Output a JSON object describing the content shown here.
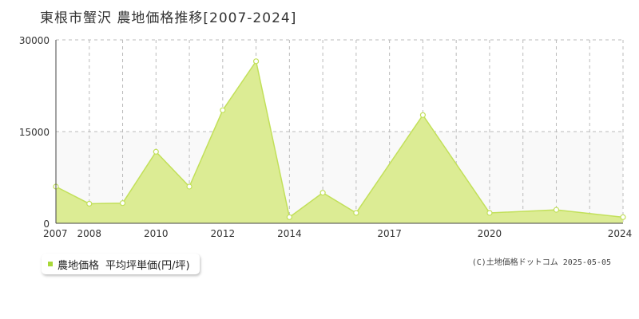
{
  "title": "東根市蟹沢  農地価格推移[2007-2024]",
  "legend": {
    "series_label": "農地価格",
    "unit_label": "平均坪単価(円/坪)"
  },
  "credit": "(C)土地価格ドットコム 2025-05-05",
  "colors": {
    "fill": "#dcec94",
    "line": "#c2e05a",
    "marker": "#a8d838",
    "grid": "#bbbbbb",
    "band": "#f9f9f9"
  },
  "chart_data": {
    "type": "area",
    "x": [
      2007,
      2008,
      2009,
      2010,
      2011,
      2012,
      2013,
      2014,
      2015,
      2016,
      2017,
      2018,
      2019,
      2020,
      2021,
      2022,
      2023,
      2024
    ],
    "y": [
      6000,
      3200,
      3300,
      11700,
      6000,
      18500,
      26500,
      1000,
      5000,
      1700,
      null,
      17700,
      null,
      1700,
      null,
      2200,
      null,
      1000
    ],
    "x_tick_labels": [
      "2007",
      "2008",
      "2010",
      "2012",
      "2014",
      "2017",
      "2020",
      "2024"
    ],
    "y_tick_labels": [
      "0",
      "15000",
      "30000"
    ],
    "ylim": [
      0,
      30000
    ],
    "xlim": [
      2007,
      2024
    ],
    "grid": true,
    "legend_position": "bottom-left"
  }
}
